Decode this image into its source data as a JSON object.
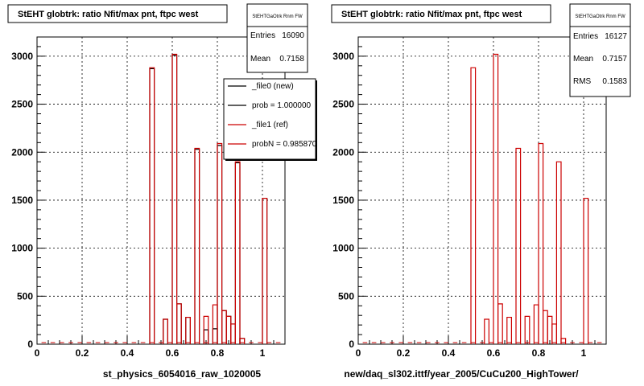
{
  "footer": "",
  "chart_data": [
    {
      "type": "bar",
      "title": "StEHT globtrk: ratio Nfit/max pnt, ftpc west",
      "xlabel": "st_physics_6054016_raw_1020005",
      "ylabel": "",
      "xlim": [
        0,
        1.1
      ],
      "ylim": [
        0,
        3200
      ],
      "xticks": [
        "0",
        "0.2",
        "0.4",
        "0.6",
        "0.8",
        "1"
      ],
      "yticks": [
        "0",
        "500",
        "1000",
        "1500",
        "2000",
        "2500",
        "3000"
      ],
      "grid": true,
      "stats": {
        "header": "StEHTGaOtrk Rnm FW",
        "rows": [
          {
            "label": "Entries",
            "value": "16090"
          },
          {
            "label": "Mean",
            "value": "0.7158"
          }
        ]
      },
      "legend": {
        "placement": "top-right",
        "entries": [
          {
            "label": "_file0 (new)",
            "color": "#000000"
          },
          {
            "label": "prob = 1.000000",
            "color": "#000000"
          },
          {
            "label": "_file1 (ref)",
            "color": "#cc0000"
          },
          {
            "label": "probN = 0.985870",
            "color": "#cc0000"
          }
        ]
      },
      "series": [
        {
          "name": "_file0 (new)",
          "color": "#000000",
          "x": [
            0.5,
            0.56,
            0.6,
            0.62,
            0.66,
            0.7,
            0.74,
            0.78,
            0.8,
            0.82,
            0.84,
            0.86,
            0.88,
            0.9,
            1.0
          ],
          "y": [
            2870,
            260,
            3010,
            420,
            280,
            2030,
            150,
            160,
            2070,
            350,
            290,
            210,
            1890,
            60,
            1520
          ]
        },
        {
          "name": "_file1 (ref)",
          "color": "#cc0000",
          "x": [
            0.5,
            0.56,
            0.6,
            0.62,
            0.66,
            0.7,
            0.74,
            0.78,
            0.8,
            0.82,
            0.84,
            0.86,
            0.88,
            0.9,
            1.0
          ],
          "y": [
            2880,
            260,
            3020,
            420,
            280,
            2040,
            290,
            410,
            2090,
            350,
            290,
            210,
            1900,
            60,
            1520
          ]
        }
      ]
    },
    {
      "type": "bar",
      "title": "StEHT globtrk: ratio Nfit/max pnt, ftpc west",
      "xlabel": "new/daq_sl302.ittf/year_2005/CuCu200_HighTower/",
      "ylabel": "",
      "xlim": [
        0,
        1.1
      ],
      "ylim": [
        0,
        3200
      ],
      "xticks": [
        "0",
        "0.2",
        "0.4",
        "0.6",
        "0.8",
        "1"
      ],
      "yticks": [
        "0",
        "500",
        "1000",
        "1500",
        "2000",
        "2500",
        "3000"
      ],
      "grid": true,
      "stats": {
        "header": "StEHTGaOtrk Rnm FW",
        "rows": [
          {
            "label": "Entries",
            "value": "16127"
          },
          {
            "label": "Mean",
            "value": "0.7157"
          },
          {
            "label": "RMS",
            "value": "0.1583"
          }
        ]
      },
      "series": [
        {
          "name": "",
          "color": "#cc0000",
          "x": [
            0.5,
            0.56,
            0.6,
            0.62,
            0.66,
            0.7,
            0.74,
            0.78,
            0.8,
            0.82,
            0.84,
            0.86,
            0.88,
            0.9,
            1.0
          ],
          "y": [
            2880,
            260,
            3020,
            420,
            280,
            2040,
            290,
            410,
            2090,
            350,
            290,
            210,
            1900,
            60,
            1520
          ]
        }
      ]
    }
  ]
}
